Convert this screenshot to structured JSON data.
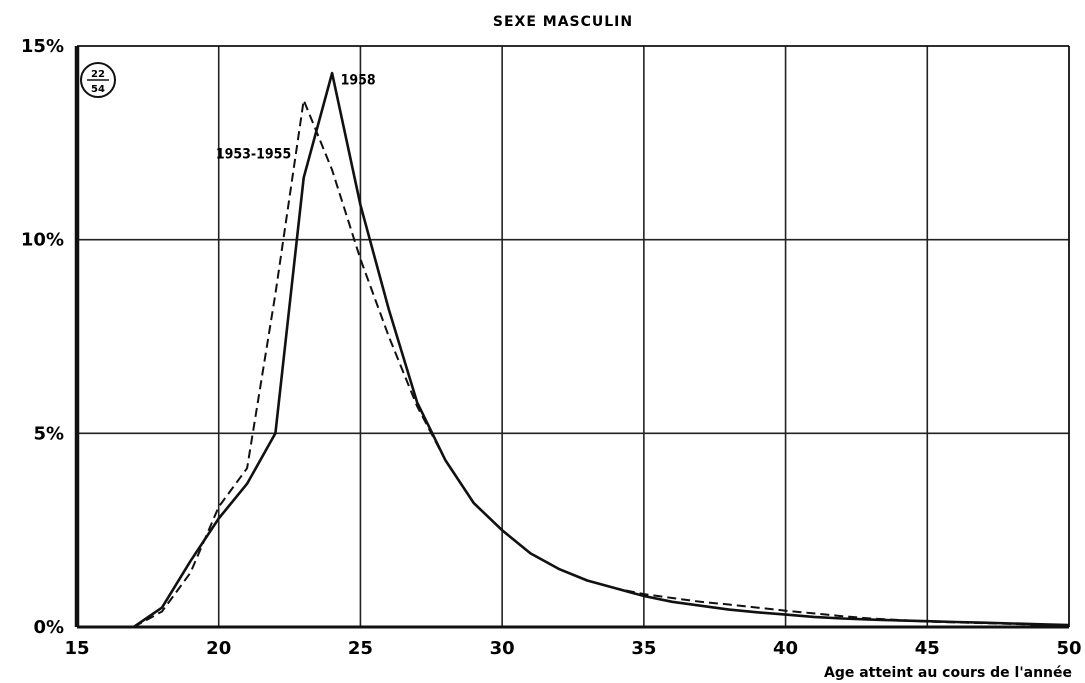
{
  "chart_data": {
    "type": "line",
    "title": "SEXE MASCULIN",
    "xlabel": "Age atteint au cours de l'année",
    "ylabel": "",
    "badge": {
      "top": "22",
      "bottom": "54"
    },
    "xlim": [
      15,
      50
    ],
    "ylim": [
      0,
      15
    ],
    "x_ticks": [
      15,
      20,
      25,
      30,
      35,
      40,
      45,
      50
    ],
    "y_ticks": [
      "0%",
      "5%",
      "10%",
      "15%"
    ],
    "grid": true,
    "series": [
      {
        "name": "1958",
        "style": "solid",
        "x": [
          17,
          18,
          19,
          20,
          21,
          22,
          23,
          24,
          25,
          26,
          27,
          28,
          29,
          30,
          31,
          32,
          33,
          34,
          35,
          36,
          37,
          38,
          39,
          40,
          41,
          42,
          43,
          44,
          45,
          46,
          47,
          48,
          49,
          50
        ],
        "y": [
          0,
          0.5,
          1.7,
          2.8,
          3.7,
          5.0,
          11.6,
          14.3,
          10.9,
          8.2,
          5.8,
          4.3,
          3.2,
          2.5,
          1.9,
          1.5,
          1.2,
          1.0,
          0.8,
          0.65,
          0.55,
          0.45,
          0.38,
          0.32,
          0.26,
          0.22,
          0.19,
          0.17,
          0.15,
          0.13,
          0.11,
          0.09,
          0.07,
          0.05
        ]
      },
      {
        "name": "1953-1955",
        "style": "dashed",
        "x": [
          17,
          18,
          19,
          20,
          21,
          22,
          23,
          24,
          25,
          26,
          27,
          28,
          29,
          30,
          31,
          32,
          33,
          34,
          35,
          36,
          37,
          38,
          39,
          40,
          41,
          42,
          43,
          44,
          45,
          46,
          47,
          48,
          49,
          50
        ],
        "y": [
          0,
          0.4,
          1.4,
          3.1,
          4.1,
          8.6,
          13.6,
          11.8,
          9.5,
          7.5,
          5.7,
          4.3,
          3.2,
          2.5,
          1.9,
          1.5,
          1.2,
          1.0,
          0.85,
          0.75,
          0.65,
          0.58,
          0.5,
          0.42,
          0.35,
          0.28,
          0.22,
          0.18,
          0.14,
          0.12,
          0.1,
          0.08,
          0.06,
          0.05
        ]
      }
    ],
    "annotations": [
      {
        "text": "1958",
        "x": 24.3,
        "y": 14.0
      },
      {
        "text": "1953-1955",
        "x": 19.9,
        "y": 12.1
      }
    ]
  }
}
